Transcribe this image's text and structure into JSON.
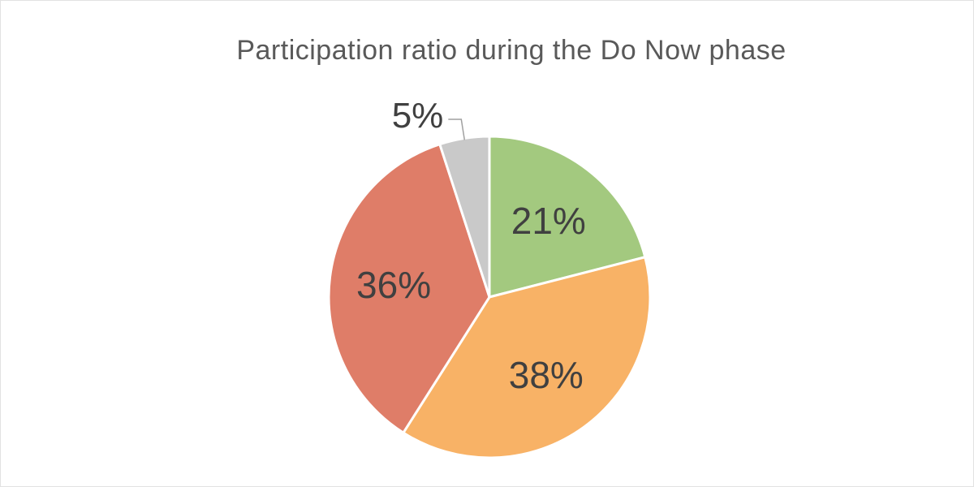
{
  "page": {
    "background_color": "#ffffff",
    "border_color": "#e2e2e2"
  },
  "chart_data": {
    "type": "pie",
    "title": "Participation ratio during the Do Now phase",
    "legend": "none",
    "start_angle_deg": 0,
    "direction": "clockwise",
    "title_color": "#595959",
    "label_color": "#404040",
    "slice_border_color": "#ffffff",
    "leader_line_color": "#a0a0a0",
    "slices": [
      {
        "label": "21%",
        "value": 21,
        "color": "#a3c97f",
        "label_position": "inside"
      },
      {
        "label": "38%",
        "value": 38,
        "color": "#f8b266",
        "label_position": "inside"
      },
      {
        "label": "36%",
        "value": 36,
        "color": "#df7d68",
        "label_position": "inside"
      },
      {
        "label": "5%",
        "value": 5,
        "color": "#c9c9c9",
        "label_position": "outside"
      }
    ]
  }
}
